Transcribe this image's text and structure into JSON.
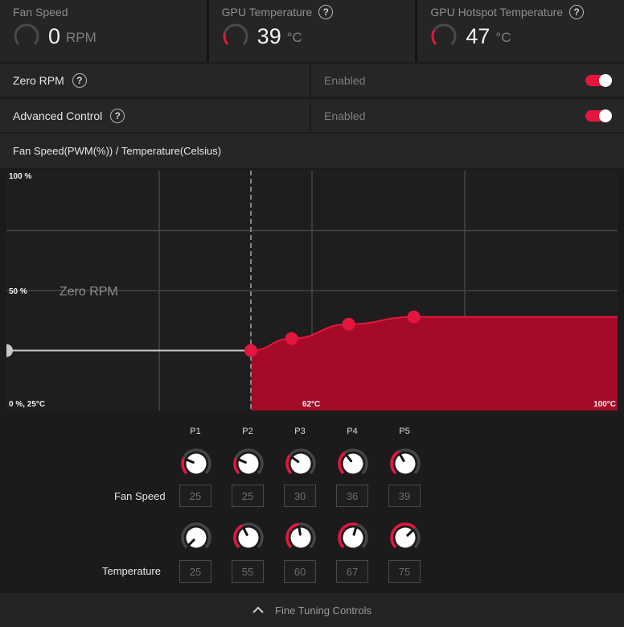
{
  "stats": [
    {
      "title": "Fan Speed",
      "value": "0",
      "unit": "RPM",
      "help": false,
      "gauge_fraction": 0.0
    },
    {
      "title": "GPU Temperature",
      "value": "39",
      "unit": "°C",
      "help": true,
      "gauge_fraction": 0.22
    },
    {
      "title": "GPU Hotspot Temperature",
      "value": "47",
      "unit": "°C",
      "help": true,
      "gauge_fraction": 0.28
    }
  ],
  "toggles": [
    {
      "label": "Zero RPM",
      "state": "Enabled",
      "on": true
    },
    {
      "label": "Advanced Control",
      "state": "Enabled",
      "on": true
    }
  ],
  "chart_header": "Fan Speed(PWM(%)) / Temperature(Celsius)",
  "colors": {
    "accent": "#e4163d",
    "fill": "#a50a28",
    "panel": "#262626",
    "background": "#1b1b1b"
  },
  "chart_data": {
    "type": "area",
    "xlabel": "",
    "ylabel": "",
    "xlim": [
      25,
      100
    ],
    "ylim": [
      0,
      100
    ],
    "grid": true,
    "y_tick_labels": [
      {
        "value": 100,
        "label": "100 %"
      },
      {
        "value": 50,
        "label": "50 %"
      },
      {
        "value": 0,
        "label": "0 %, 25°C"
      }
    ],
    "x_tick_labels": [
      {
        "value": 62,
        "label": "62°C"
      },
      {
        "value": 100,
        "label": "100°C"
      }
    ],
    "zero_rpm_label": "Zero RPM",
    "zero_rpm_until": 55,
    "start_point": {
      "x": 25,
      "y": 25
    },
    "points": [
      {
        "name": "P1",
        "x": 25,
        "y": 25
      },
      {
        "name": "P2",
        "x": 55,
        "y": 25
      },
      {
        "name": "P3",
        "x": 60,
        "y": 30
      },
      {
        "name": "P4",
        "x": 67,
        "y": 36
      },
      {
        "name": "P5",
        "x": 75,
        "y": 39
      }
    ],
    "end_point": {
      "x": 100,
      "y": 39
    }
  },
  "controls": {
    "point_labels": [
      "P1",
      "P2",
      "P3",
      "P4",
      "P5"
    ],
    "fan_speed_label": "Fan Speed",
    "temperature_label": "Temperature",
    "fan_speed_values": [
      "25",
      "25",
      "30",
      "36",
      "39"
    ],
    "temperature_values": [
      "25",
      "55",
      "60",
      "67",
      "75"
    ],
    "fan_speed_min": 0,
    "fan_speed_max": 100,
    "temperature_min": 25,
    "temperature_max": 100
  },
  "footer": {
    "label": "Fine Tuning Controls",
    "icon": "chevron-up-icon"
  }
}
